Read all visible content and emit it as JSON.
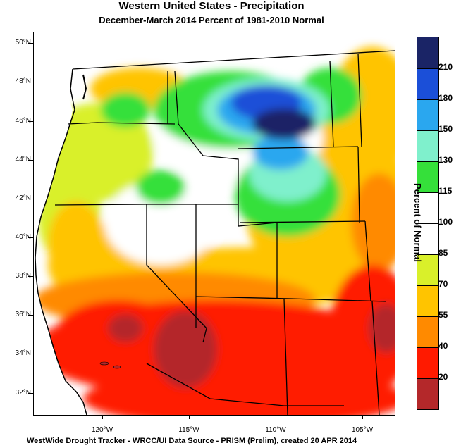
{
  "title": "Western United States - Precipitation",
  "subtitle": "December-March 2014  Percent of 1981-2010 Normal",
  "footer": "WestWide Drought Tracker - WRCC/UI  Data Source - PRISM (Prelim), created 20 APR 2014",
  "lat_labels": [
    "50°N",
    "48°N",
    "46°N",
    "44°N",
    "42°N",
    "40°N",
    "38°N",
    "36°N",
    "34°N",
    "32°N"
  ],
  "lon_labels": [
    "120°W",
    "115°W",
    "110°W",
    "105°W"
  ],
  "legend": {
    "title": "Percent of Normal",
    "labels": [
      "210",
      "180",
      "150",
      "130",
      "115",
      "100",
      "85",
      "70",
      "55",
      "40",
      "20"
    ],
    "colors": [
      "#1a2466",
      "#1b4fd8",
      "#2aa7ef",
      "#7ff0cc",
      "#35e03a",
      "#ffffff",
      "#ffffff",
      "#d9f02a",
      "#ffc400",
      "#ff8a00",
      "#ff1a00",
      "#b4282a"
    ]
  }
}
